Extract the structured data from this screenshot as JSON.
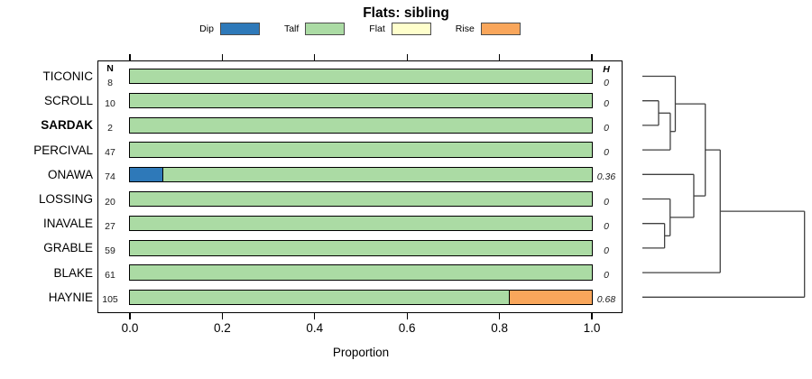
{
  "chart_data": {
    "type": "bar",
    "orientation": "horizontal",
    "stacked": true,
    "title": "Flats: sibling",
    "xlabel": "Proportion",
    "xlim": [
      0,
      1
    ],
    "xticks": [
      "0.0",
      "0.2",
      "0.4",
      "0.6",
      "0.8",
      "1.0"
    ],
    "grid": false,
    "legend_position": "top",
    "categories": [
      "TICONIC",
      "SCROLL",
      "SARDAK",
      "PERCIVAL",
      "ONAWA",
      "LOSSING",
      "INAVALE",
      "GRABLE",
      "BLAKE",
      "HAYNIE"
    ],
    "emphasized_category": "SARDAK",
    "counts_header": "N",
    "counts": [
      8,
      10,
      2,
      47,
      74,
      20,
      27,
      59,
      61,
      105
    ],
    "entropy_header": "H",
    "entropy": [
      "0",
      "0",
      "0",
      "0",
      "0.36",
      "0",
      "0",
      "0",
      "0",
      "0.68"
    ],
    "series": [
      {
        "name": "Dip",
        "color": "#2E79B9",
        "values": [
          0,
          0,
          0,
          0,
          0.07,
          0,
          0,
          0,
          0,
          0
        ]
      },
      {
        "name": "Talf",
        "color": "#ABDBA4",
        "values": [
          1,
          1,
          1,
          1,
          0.93,
          1,
          1,
          1,
          1,
          0.82
        ]
      },
      {
        "name": "Flat",
        "color": "#FFFFCC",
        "values": [
          0,
          0,
          0,
          0,
          0,
          0,
          0,
          0,
          0,
          0
        ]
      },
      {
        "name": "Rise",
        "color": "#F9A65B",
        "values": [
          0,
          0,
          0,
          0,
          0,
          0,
          0,
          0,
          0,
          0.18
        ]
      }
    ],
    "dendrogram": {
      "h": 1.0,
      "children": [
        {
          "h": 0.48,
          "children": [
            {
              "h": 0.388,
              "children": [
                {
                  "h": 0.203,
                  "children": [
                    {
                      "leaf": "TICONIC"
                    },
                    {
                      "h": 0.172,
                      "children": [
                        {
                          "h": 0.1,
                          "children": [
                            {
                              "leaf": "SCROLL"
                            },
                            {
                              "leaf": "SARDAK"
                            }
                          ]
                        },
                        {
                          "leaf": "PERCIVAL"
                        }
                      ]
                    }
                  ]
                },
                {
                  "h": 0.317,
                  "children": [
                    {
                      "leaf": "ONAWA"
                    },
                    {
                      "h": 0.171,
                      "children": [
                        {
                          "leaf": "LOSSING"
                        },
                        {
                          "h": 0.137,
                          "children": [
                            {
                              "leaf": "INAVALE"
                            },
                            {
                              "leaf": "GRABLE"
                            }
                          ]
                        }
                      ]
                    }
                  ]
                }
              ]
            },
            {
              "leaf": "BLAKE"
            }
          ]
        },
        {
          "leaf": "HAYNIE"
        }
      ]
    },
    "colors": {
      "bar_border": "#000000",
      "frame_border": "#000000",
      "dendrogram_line": "#404040",
      "legend_swatch_border": "#4d4d4d"
    }
  }
}
